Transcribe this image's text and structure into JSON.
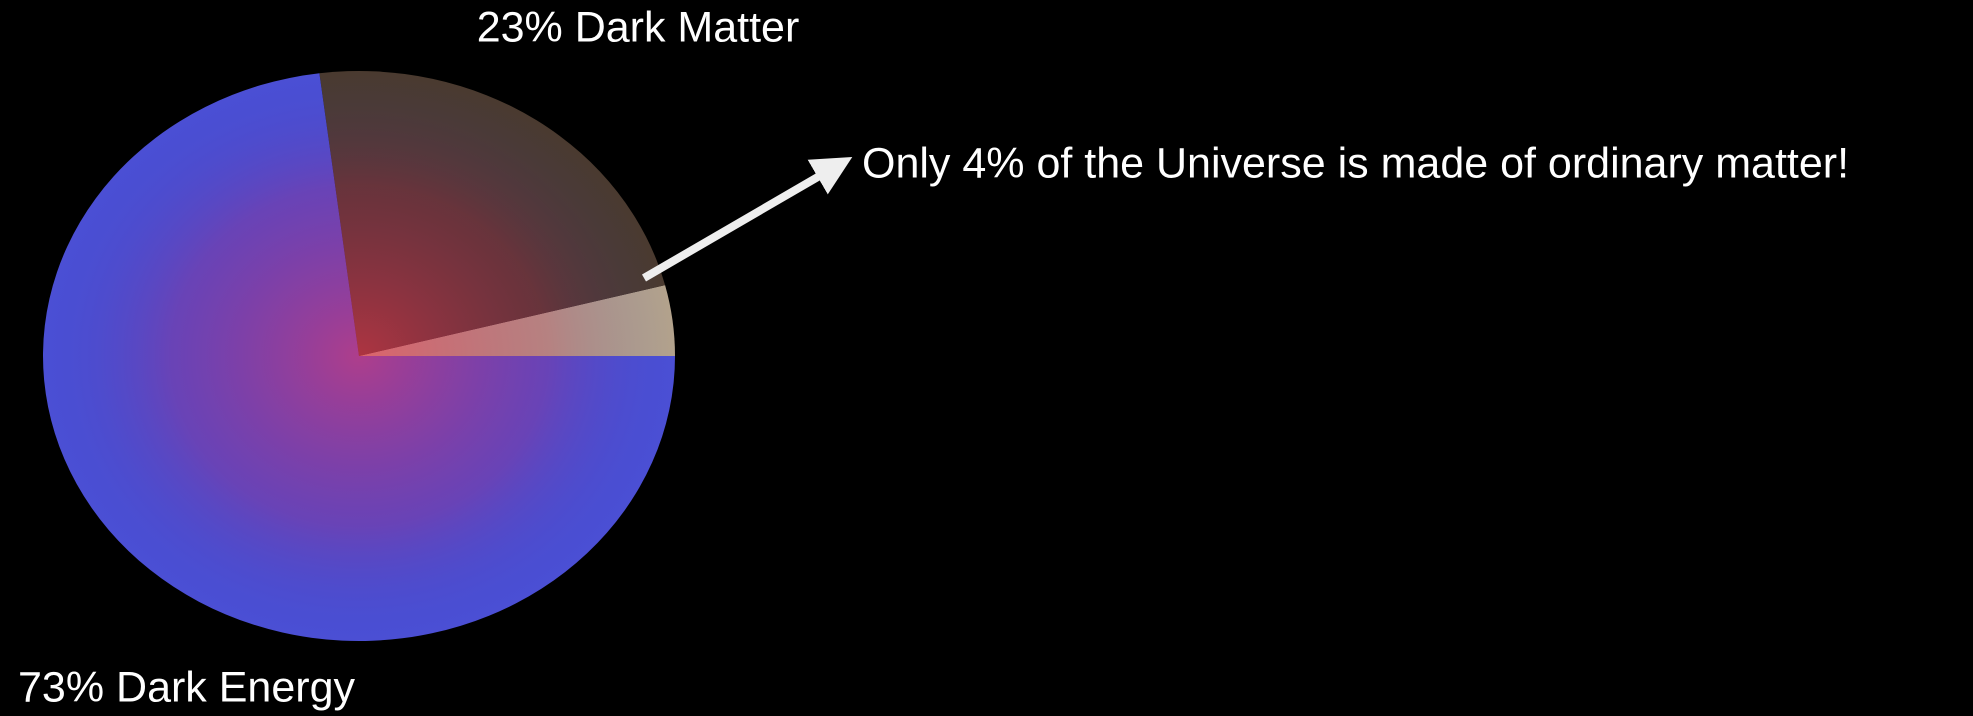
{
  "chart_data": {
    "type": "pie",
    "values": [
      4,
      23,
      73
    ],
    "value_labels": [
      "Only 4% of the Universe is made of ordinary matter!",
      "23% Dark Matter",
      "73% Dark Energy"
    ],
    "colors": [
      "#b3a28c",
      "#4a3a2f",
      "#4b4fd4"
    ]
  }
}
